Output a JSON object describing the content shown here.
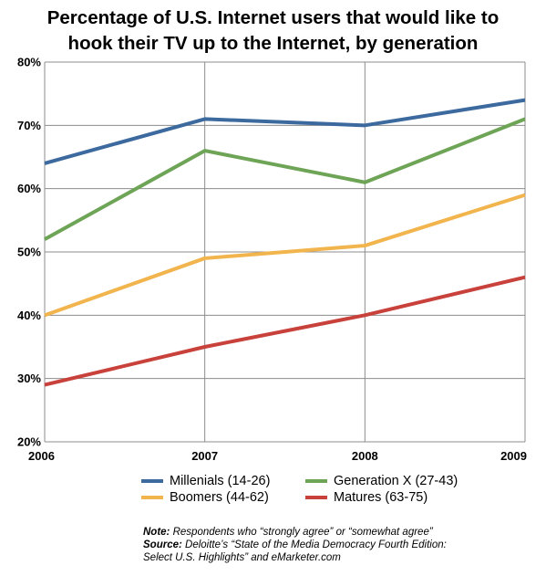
{
  "title_lines": [
    "Percentage of U.S. Internet users that would like to",
    "hook their TV up to the Internet, by generation"
  ],
  "notes": {
    "note_label": "Note:",
    "note_text": "Respondents who “strongly agree” or “somewhat agree”",
    "source_label": "Source:",
    "source_text": "Deloitte’s “State of the Media Democracy Fourth Edition:",
    "source_text_2": "Select U.S. Highlights” and eMarketer.com"
  },
  "chart_data": {
    "type": "line",
    "title": "Percentage of U.S. Internet users that would like to hook their TV up to the Internet, by generation",
    "categories": [
      "2006",
      "2007",
      "2008",
      "2009"
    ],
    "y_ticks": [
      "20%",
      "30%",
      "40%",
      "50%",
      "60%",
      "70%",
      "80%"
    ],
    "ylim": [
      20,
      80
    ],
    "grid": true,
    "legend_position": "bottom",
    "series": [
      {
        "name": "Millenials (14-26)",
        "color": "#3d6a9e",
        "values": [
          64,
          71,
          70,
          74
        ]
      },
      {
        "name": "Generation X (27-43)",
        "color": "#6ea456",
        "values": [
          52,
          66,
          61,
          71
        ]
      },
      {
        "name": "Boomers (44-62)",
        "color": "#f2b44d",
        "values": [
          40,
          49,
          51,
          59
        ]
      },
      {
        "name": "Matures (63-75)",
        "color": "#c8413b",
        "values": [
          29,
          35,
          40,
          46
        ]
      }
    ]
  }
}
